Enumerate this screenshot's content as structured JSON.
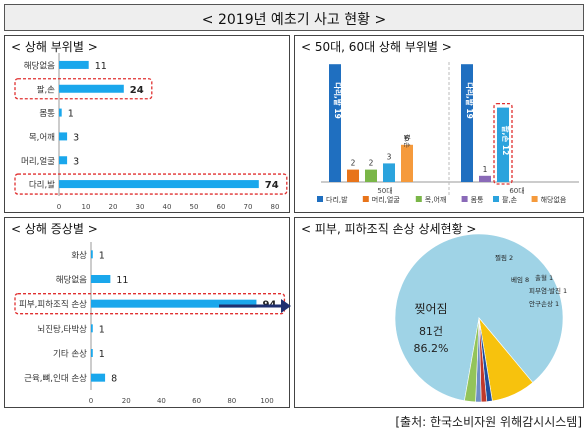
{
  "title": "< 2019년 예초기 사고 현황 >",
  "source": "[출처: 한국소비자원 위해감시시스템]",
  "colors": {
    "bar": "#1aa7ec",
    "highlight": "#e03030",
    "axis": "#999999",
    "arrow": "#1f2f6f"
  },
  "chart_data": [
    {
      "type": "bar",
      "title": "< 상해 부위별 >",
      "orientation": "horizontal",
      "categories": [
        "해당없음",
        "팔,손",
        "몸통",
        "목,어깨",
        "머리,얼굴",
        "다리,발"
      ],
      "values": [
        11,
        24,
        1,
        3,
        3,
        74
      ],
      "highlighted": [
        "팔,손",
        "다리,발"
      ],
      "xlim": [
        0,
        80
      ],
      "xticks": [
        0,
        10,
        20,
        30,
        40,
        50,
        60,
        70,
        80
      ],
      "grid": false
    },
    {
      "type": "bar",
      "title": "< 50대, 60대 상해 부위별 >",
      "groups": [
        "50대",
        "60대"
      ],
      "series": [
        {
          "name": "다리,발",
          "color": "#1f6fc0",
          "values": [
            19,
            19
          ],
          "labels": [
            "다리,발 19",
            "다리,발 19"
          ]
        },
        {
          "name": "머리,얼굴",
          "color": "#e8741a",
          "values": [
            2,
            0
          ],
          "labels": [
            "2",
            ""
          ]
        },
        {
          "name": "목,어깨",
          "color": "#7ab648",
          "values": [
            2,
            0
          ],
          "labels": [
            "2",
            ""
          ]
        },
        {
          "name": "몸통",
          "color": "#8a6ab8",
          "values": [
            0,
            1
          ],
          "labels": [
            "",
            "1"
          ]
        },
        {
          "name": "팔,손",
          "color": "#2ba3dd",
          "values": [
            3,
            12
          ],
          "labels": [
            "3",
            "팔,손 12"
          ]
        },
        {
          "name": "해당없음",
          "color": "#f59a3c",
          "values": [
            6,
            0
          ],
          "labels": [
            "6",
            ""
          ]
        }
      ],
      "inner_labels": [
        "팔,손",
        "다리,발 19",
        "다리,발 19",
        "팔,손 12"
      ],
      "ylim": [
        0,
        20
      ],
      "highlighted": "팔,손 12",
      "legend_position": "bottom",
      "grid": false
    },
    {
      "type": "bar",
      "title": "< 상해 증상별 >",
      "orientation": "horizontal",
      "categories": [
        "화상",
        "해당없음",
        "피부,피하조직 손상",
        "뇌진탕,타박상",
        "기타 손상",
        "근육,뼈,인대 손상"
      ],
      "values": [
        1,
        11,
        94,
        1,
        1,
        8
      ],
      "highlighted": [
        "피부,피하조직 손상"
      ],
      "xlim": [
        0,
        100
      ],
      "xticks": [
        0,
        20,
        40,
        60,
        80,
        100
      ],
      "grid": false
    },
    {
      "type": "pie",
      "title": "< 피부, 피하조직 손상 상세현황 >",
      "slices": [
        {
          "label": "찢어짐",
          "value": 81,
          "color": "#9fd3e6",
          "text": "81건",
          "percent": "86.2%"
        },
        {
          "label": "베임",
          "value": 8,
          "color": "#f7c20d",
          "text": "베임 8"
        },
        {
          "label": "출혈",
          "value": 1,
          "color": "#1f4fa0",
          "text": "출혈 1"
        },
        {
          "label": "피부염·발진",
          "value": 1,
          "color": "#c0392b",
          "text": "피부염·발진 1"
        },
        {
          "label": "안구손상",
          "value": 1,
          "color": "#6f8fc6",
          "text": "안구손상 1"
        },
        {
          "label": "찔림",
          "value": 2,
          "color": "#93c45a",
          "text": "찔림 2"
        }
      ]
    }
  ]
}
